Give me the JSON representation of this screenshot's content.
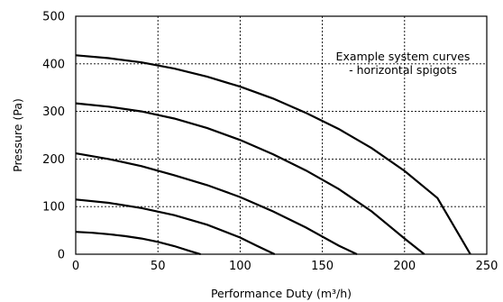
{
  "chart_data": {
    "type": "line",
    "xlabel": "Performance Duty (m³/h)",
    "ylabel": "Pressure (Pa)",
    "xlim": [
      0,
      250
    ],
    "ylim": [
      0,
      500
    ],
    "x_ticks": [
      0,
      50,
      100,
      150,
      200,
      250
    ],
    "y_ticks": [
      0,
      100,
      200,
      300,
      400,
      500
    ],
    "x_tick_labels": [
      "0",
      "50",
      "100",
      "150",
      "200",
      "250"
    ],
    "y_tick_labels": [
      "0",
      "100",
      "200",
      "300",
      "400",
      "500"
    ],
    "grid": true,
    "annotation": {
      "lines": [
        "Example system curves",
        "- horizontal spigots"
      ],
      "placement": "top-right"
    },
    "series": [
      {
        "x": [
          0,
          10,
          20,
          30,
          40,
          50,
          60,
          70,
          76
        ],
        "y": [
          47,
          45,
          42,
          38,
          33,
          26,
          17,
          6,
          0
        ]
      },
      {
        "x": [
          0,
          20,
          40,
          60,
          80,
          100,
          110,
          121
        ],
        "y": [
          115,
          108,
          97,
          82,
          62,
          35,
          18,
          0
        ]
      },
      {
        "x": [
          0,
          20,
          40,
          60,
          80,
          100,
          120,
          140,
          160,
          171
        ],
        "y": [
          212,
          200,
          185,
          166,
          145,
          120,
          90,
          56,
          18,
          0
        ]
      },
      {
        "x": [
          0,
          20,
          40,
          60,
          80,
          100,
          120,
          140,
          160,
          180,
          200,
          212
        ],
        "y": [
          317,
          310,
          300,
          285,
          265,
          240,
          210,
          176,
          137,
          90,
          33,
          0
        ]
      },
      {
        "x": [
          0,
          20,
          40,
          60,
          80,
          100,
          120,
          140,
          160,
          180,
          200,
          220,
          240
        ],
        "y": [
          418,
          412,
          403,
          390,
          373,
          352,
          327,
          297,
          263,
          223,
          175,
          118,
          0
        ]
      }
    ]
  }
}
